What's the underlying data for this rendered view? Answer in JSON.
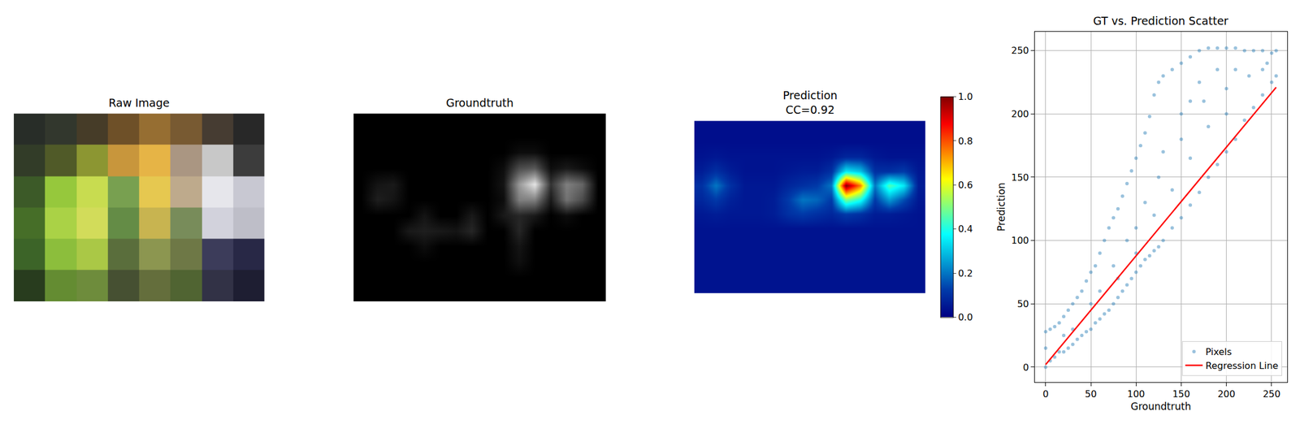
{
  "chart_data": [
    {
      "type": "image",
      "title": "Raw Image",
      "tick_labels": false,
      "pixels": [
        [
          [
            40,
            45,
            40
          ],
          [
            50,
            55,
            45
          ],
          [
            70,
            60,
            40
          ],
          [
            110,
            80,
            40
          ],
          [
            150,
            110,
            50
          ],
          [
            120,
            90,
            50
          ],
          [
            70,
            60,
            50
          ],
          [
            40,
            40,
            40
          ]
        ],
        [
          [
            50,
            60,
            40
          ],
          [
            80,
            90,
            40
          ],
          [
            140,
            150,
            50
          ],
          [
            200,
            150,
            60
          ],
          [
            230,
            180,
            70
          ],
          [
            170,
            150,
            130
          ],
          [
            200,
            200,
            200
          ],
          [
            60,
            60,
            60
          ]
        ],
        [
          [
            60,
            90,
            40
          ],
          [
            150,
            200,
            60
          ],
          [
            200,
            220,
            80
          ],
          [
            120,
            160,
            80
          ],
          [
            230,
            200,
            80
          ],
          [
            190,
            170,
            140
          ],
          [
            230,
            230,
            235
          ],
          [
            200,
            200,
            210
          ]
        ],
        [
          [
            70,
            110,
            40
          ],
          [
            170,
            210,
            70
          ],
          [
            210,
            220,
            90
          ],
          [
            100,
            140,
            70
          ],
          [
            200,
            180,
            80
          ],
          [
            120,
            140,
            90
          ],
          [
            210,
            210,
            220
          ],
          [
            190,
            190,
            200
          ]
        ],
        [
          [
            60,
            100,
            40
          ],
          [
            140,
            190,
            60
          ],
          [
            170,
            200,
            70
          ],
          [
            90,
            110,
            60
          ],
          [
            140,
            150,
            80
          ],
          [
            110,
            120,
            70
          ],
          [
            60,
            60,
            90
          ],
          [
            40,
            40,
            70
          ]
        ],
        [
          [
            40,
            60,
            30
          ],
          [
            100,
            140,
            50
          ],
          [
            110,
            140,
            60
          ],
          [
            70,
            80,
            50
          ],
          [
            100,
            110,
            60
          ],
          [
            80,
            100,
            50
          ],
          [
            50,
            50,
            70
          ],
          [
            30,
            30,
            50
          ]
        ]
      ]
    },
    {
      "type": "heatmap",
      "title": "Groundtruth",
      "color": "gray",
      "tick_labels": false,
      "zlim": [
        0,
        1
      ],
      "cells": [
        [
          0,
          0,
          0,
          0,
          0,
          0,
          0,
          0,
          0,
          0,
          0,
          0,
          0,
          0,
          0,
          0
        ],
        [
          0,
          0,
          0,
          0,
          0,
          0,
          0,
          0,
          0,
          0,
          0,
          0,
          0,
          0,
          0,
          0
        ],
        [
          0,
          0,
          0,
          0,
          0,
          0,
          0,
          0,
          0,
          0,
          0.05,
          0.05,
          0,
          0,
          0,
          0
        ],
        [
          0,
          0,
          0,
          0,
          0,
          0,
          0,
          0,
          0,
          0.05,
          0.3,
          0.35,
          0.05,
          0.1,
          0.05,
          0
        ],
        [
          0,
          0.08,
          0.1,
          0,
          0,
          0,
          0,
          0,
          0,
          0.08,
          0.6,
          0.9,
          0.2,
          0.5,
          0.4,
          0
        ],
        [
          0,
          0.12,
          0.08,
          0,
          0,
          0,
          0,
          0,
          0,
          0.05,
          0.5,
          0.5,
          0.1,
          0.45,
          0.3,
          0
        ],
        [
          0,
          0,
          0,
          0,
          0.08,
          0,
          0,
          0.1,
          0,
          0.1,
          0.15,
          0.1,
          0,
          0.05,
          0,
          0
        ],
        [
          0,
          0,
          0,
          0.1,
          0.12,
          0.1,
          0.08,
          0.15,
          0,
          0,
          0.15,
          0,
          0,
          0,
          0,
          0
        ],
        [
          0,
          0,
          0,
          0,
          0.05,
          0,
          0,
          0,
          0,
          0,
          0.08,
          0,
          0,
          0,
          0,
          0
        ],
        [
          0,
          0,
          0,
          0,
          0,
          0,
          0,
          0,
          0,
          0,
          0.06,
          0,
          0,
          0,
          0,
          0
        ],
        [
          0,
          0,
          0,
          0,
          0,
          0,
          0,
          0,
          0,
          0,
          0,
          0,
          0,
          0,
          0,
          0
        ],
        [
          0,
          0,
          0,
          0,
          0,
          0,
          0,
          0,
          0,
          0,
          0,
          0,
          0,
          0,
          0,
          0
        ]
      ]
    },
    {
      "type": "heatmap",
      "title": "Prediction",
      "subtitle": "CC=0.92",
      "color": "jet",
      "tick_labels": false,
      "zlim": [
        0,
        1
      ],
      "zticks": [
        {
          "value": 0,
          "label": "0.0"
        },
        {
          "value": 0.2,
          "label": "0.2"
        },
        {
          "value": 0.4,
          "label": "0.4"
        },
        {
          "value": 0.6,
          "label": "0.6"
        },
        {
          "value": 0.8,
          "label": "0.8"
        },
        {
          "value": 1,
          "label": "1.0"
        }
      ],
      "cells": [
        [
          0.03,
          0.03,
          0.03,
          0.03,
          0.03,
          0.03,
          0.03,
          0.03,
          0.03,
          0.03,
          0.03,
          0.03,
          0.03,
          0.03,
          0.03,
          0.03
        ],
        [
          0.03,
          0.03,
          0.03,
          0.03,
          0.03,
          0.03,
          0.03,
          0.03,
          0.03,
          0.03,
          0.03,
          0.03,
          0.03,
          0.03,
          0.03,
          0.03
        ],
        [
          0.04,
          0.05,
          0.04,
          0.04,
          0.04,
          0.04,
          0.04,
          0.04,
          0.04,
          0.05,
          0.08,
          0.08,
          0.05,
          0.04,
          0.04,
          0.04
        ],
        [
          0.06,
          0.1,
          0.06,
          0.04,
          0.04,
          0.04,
          0.05,
          0.06,
          0.06,
          0.1,
          0.35,
          0.3,
          0.1,
          0.1,
          0.12,
          0.05
        ],
        [
          0.1,
          0.2,
          0.1,
          0.05,
          0.05,
          0.05,
          0.08,
          0.1,
          0.12,
          0.2,
          1.0,
          0.75,
          0.2,
          0.45,
          0.35,
          0.06
        ],
        [
          0.08,
          0.12,
          0.07,
          0.05,
          0.05,
          0.06,
          0.12,
          0.2,
          0.18,
          0.12,
          0.5,
          0.4,
          0.12,
          0.25,
          0.15,
          0.05
        ],
        [
          0.05,
          0.06,
          0.05,
          0.05,
          0.05,
          0.06,
          0.1,
          0.12,
          0.1,
          0.08,
          0.12,
          0.1,
          0.06,
          0.06,
          0.05,
          0.04
        ],
        [
          0.04,
          0.04,
          0.04,
          0.04,
          0.04,
          0.04,
          0.04,
          0.04,
          0.04,
          0.04,
          0.04,
          0.04,
          0.04,
          0.04,
          0.04,
          0.04
        ],
        [
          0.04,
          0.04,
          0.04,
          0.04,
          0.04,
          0.04,
          0.04,
          0.04,
          0.04,
          0.04,
          0.04,
          0.04,
          0.04,
          0.04,
          0.04,
          0.04
        ],
        [
          0.04,
          0.04,
          0.04,
          0.04,
          0.04,
          0.04,
          0.04,
          0.04,
          0.04,
          0.04,
          0.04,
          0.04,
          0.04,
          0.04,
          0.04,
          0.04
        ],
        [
          0.04,
          0.04,
          0.04,
          0.04,
          0.04,
          0.04,
          0.04,
          0.04,
          0.04,
          0.04,
          0.04,
          0.04,
          0.04,
          0.04,
          0.04,
          0.04
        ],
        [
          0.04,
          0.04,
          0.04,
          0.04,
          0.04,
          0.04,
          0.04,
          0.04,
          0.04,
          0.04,
          0.04,
          0.04,
          0.04,
          0.04,
          0.04,
          0.04
        ]
      ]
    },
    {
      "type": "scatter",
      "title": "GT vs. Prediction Scatter",
      "x_label": "Groundtruth",
      "y_label": "Prediction",
      "xlim": [
        -12,
        267
      ],
      "ylim": [
        -12,
        265
      ],
      "xticks": [
        0,
        50,
        100,
        150,
        200,
        250
      ],
      "yticks": [
        0,
        50,
        100,
        150,
        200,
        250
      ],
      "grid": true,
      "legend": "lower right",
      "series": [
        {
          "name": "Pixels",
          "type": "scatter",
          "marker": "circle",
          "color": "#1f77b4",
          "x": [
            0,
            0,
            0,
            5,
            5,
            10,
            10,
            15,
            15,
            20,
            20,
            25,
            25,
            30,
            30,
            35,
            35,
            40,
            40,
            45,
            45,
            50,
            50,
            55,
            55,
            60,
            60,
            65,
            65,
            70,
            70,
            75,
            75,
            80,
            80,
            85,
            85,
            90,
            90,
            95,
            95,
            100,
            100,
            105,
            105,
            110,
            110,
            115,
            115,
            120,
            120,
            125,
            125,
            130,
            130,
            140,
            140,
            150,
            150,
            160,
            160,
            170,
            170,
            180,
            180,
            190,
            190,
            200,
            200,
            210,
            210,
            220,
            220,
            230,
            230,
            240,
            240,
            250,
            250,
            255,
            255,
            50,
            75,
            100,
            125,
            150,
            175,
            200,
            225,
            110,
            130,
            150,
            170,
            190,
            90,
            60,
            30,
            20,
            140,
            160,
            180,
            200,
            120,
            100,
            80,
            160,
            210,
            240,
            245
          ],
          "values": [
            0,
            15,
            28,
            5,
            30,
            8,
            32,
            12,
            35,
            12,
            40,
            15,
            45,
            18,
            50,
            22,
            55,
            25,
            60,
            28,
            68,
            30,
            75,
            35,
            80,
            38,
            90,
            42,
            100,
            45,
            110,
            50,
            118,
            55,
            125,
            60,
            135,
            65,
            145,
            70,
            155,
            75,
            165,
            80,
            175,
            85,
            185,
            88,
            198,
            92,
            215,
            95,
            225,
            100,
            230,
            110,
            235,
            118,
            240,
            128,
            245,
            138,
            250,
            150,
            252,
            160,
            252,
            170,
            252,
            180,
            252,
            195,
            250,
            205,
            250,
            215,
            250,
            225,
            248,
            230,
            250,
            50,
            80,
            110,
            150,
            180,
            210,
            220,
            230,
            130,
            170,
            200,
            225,
            235,
            100,
            60,
            30,
            25,
            140,
            165,
            190,
            200,
            120,
            90,
            70,
            210,
            235,
            235,
            240
          ]
        },
        {
          "name": "Regression Line",
          "type": "line",
          "line_style": "solid",
          "color": "red",
          "x": [
            0,
            255
          ],
          "values": [
            2,
            221
          ]
        }
      ]
    }
  ]
}
